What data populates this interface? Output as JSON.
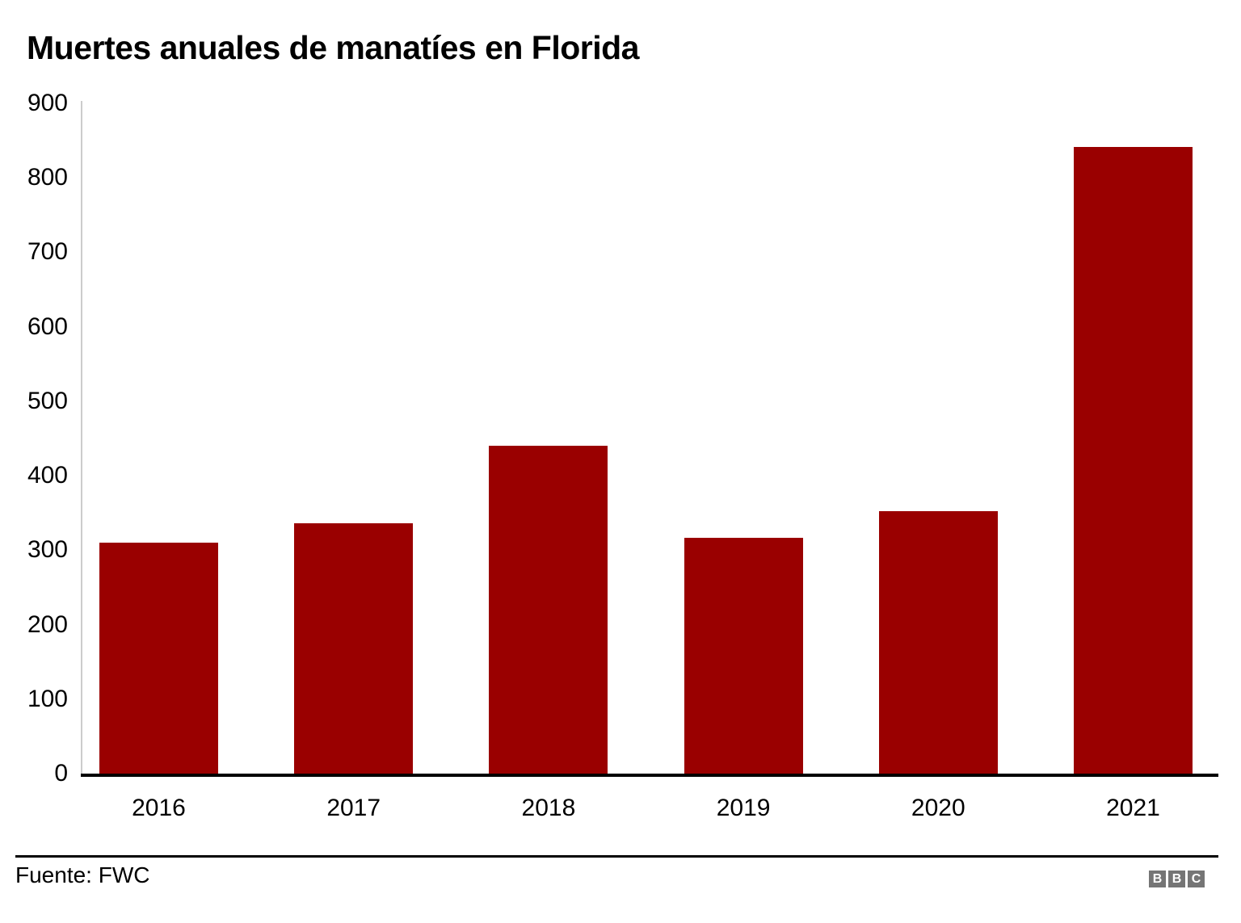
{
  "chart_data": {
    "type": "bar",
    "title": "Muertes anuales de manatíes en Florida",
    "categories": [
      "2016",
      "2017",
      "2018",
      "2019",
      "2020",
      "2021"
    ],
    "values": [
      310,
      336,
      440,
      317,
      352,
      841
    ],
    "xlabel": "",
    "ylabel": "",
    "ylim": [
      0,
      900
    ],
    "yticks": [
      0,
      100,
      200,
      300,
      400,
      500,
      600,
      700,
      800,
      900
    ],
    "grid": false,
    "legend": false,
    "bar_color": "#9a0000"
  },
  "footer": {
    "source": "Fuente: FWC",
    "logo_letters": [
      "B",
      "B",
      "C"
    ],
    "logo_square_color": "#757575",
    "logo_letter_color": "#ffffff"
  }
}
